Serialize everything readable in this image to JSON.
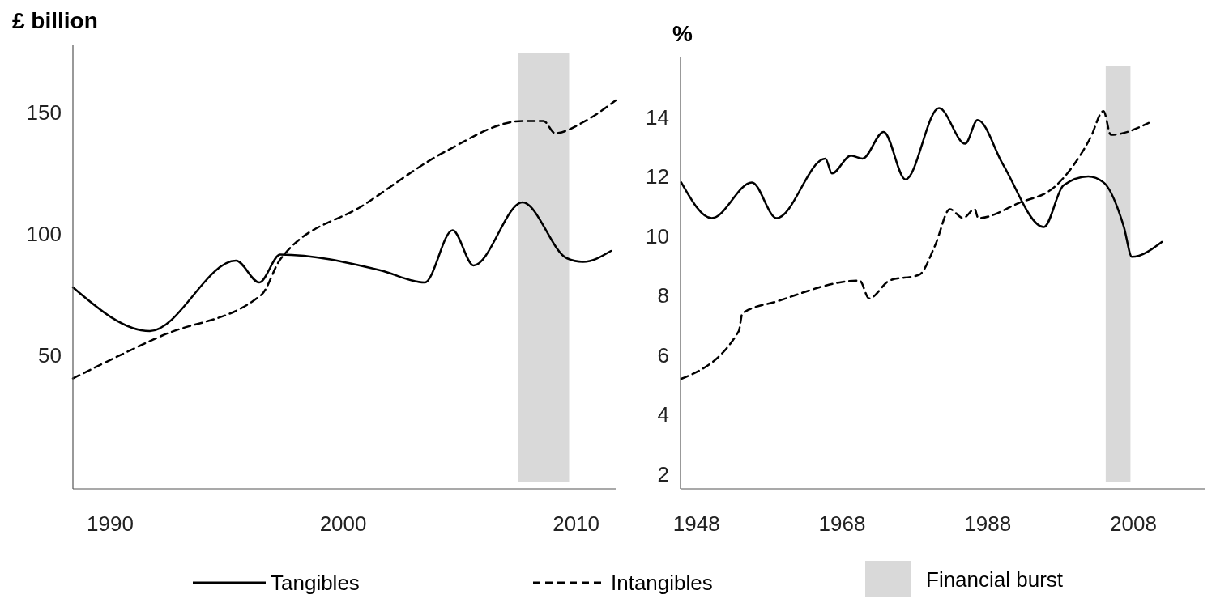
{
  "chart_data": [
    {
      "type": "line",
      "ylabel": "£ billion",
      "xlim": [
        1988.4,
        2011.7
      ],
      "xticks": [
        1990,
        2000,
        2010
      ],
      "ylim": [
        -5,
        178
      ],
      "yticks": [
        50,
        100,
        150
      ],
      "grid": false,
      "legend": "bottom",
      "bands": [
        {
          "axis": "x",
          "from": 2007.5,
          "to": 2009.7,
          "label": "Financial burst",
          "color": "#d9d9d9"
        }
      ],
      "series": [
        {
          "name": "Tangibles",
          "color": "#000000",
          "line_style": "solid",
          "x": [
            1988.4,
            1991.7,
            1995.4,
            1996.4,
            1997.3,
            2001.6,
            2003.5,
            2004.7,
            2005.6,
            2007.7,
            2009.6,
            2010.3,
            2011.5
          ],
          "values": [
            78,
            60,
            89,
            80,
            91.5,
            85,
            80,
            101.5,
            87,
            113,
            90,
            88.5,
            93
          ]
        },
        {
          "name": "Intangibles",
          "color": "#000000",
          "line_style": "dashed",
          "x": [
            1988.4,
            1992.2,
            1996.5,
            1997.3,
            2000.9,
            2004.4,
            2007.7,
            2008.6,
            2009.1,
            2010.3,
            2011.7
          ],
          "values": [
            40.5,
            58,
            75,
            89.5,
            112,
            134,
            146.5,
            146.5,
            141.5,
            146,
            155
          ]
        }
      ]
    },
    {
      "type": "line",
      "ylabel": "%",
      "xlim": [
        1945.8,
        2017.9
      ],
      "xticks": [
        1948,
        1968,
        1988,
        2008
      ],
      "ylim": [
        1.5,
        16
      ],
      "yticks": [
        2,
        4,
        6,
        8,
        10,
        12,
        14
      ],
      "grid": false,
      "bands": [
        {
          "axis": "x",
          "from": 2004.2,
          "to": 2007.6,
          "color": "#d9d9d9"
        }
      ],
      "series": [
        {
          "color": "#000000",
          "line_style": "solid",
          "x": [
            1945.9,
            1950.1,
            1955.6,
            1959.0,
            1965.7,
            1966.6,
            1969.2,
            1970.8,
            1973.7,
            1976.7,
            1981.3,
            1984.9,
            1986.6,
            1990.1,
            1995.7,
            1998.4,
            2001.8,
            2003.9,
            2006.7,
            2007.8,
            2011.9
          ],
          "values": [
            11.8,
            10.6,
            11.8,
            10.6,
            12.6,
            12.1,
            12.7,
            12.6,
            13.5,
            11.9,
            14.3,
            13.1,
            13.9,
            12.4,
            10.3,
            11.7,
            12.0,
            11.8,
            10.3,
            9.3,
            9.8
          ]
        },
        {
          "color": "#000000",
          "line_style": "dashed",
          "x": [
            1945.9,
            1953.8,
            1954.3,
            1959.0,
            1970.4,
            1971.7,
            1974.5,
            1978.6,
            1980.8,
            1982.8,
            1984.6,
            1986.2,
            1986.7,
            1992.2,
            1997.4,
            2002.1,
            2003.9,
            2004.9,
            2010.1
          ],
          "values": [
            5.2,
            6.8,
            7.4,
            7.8,
            8.5,
            7.9,
            8.5,
            8.7,
            9.7,
            10.9,
            10.6,
            10.9,
            10.6,
            11.1,
            11.7,
            13.3,
            14.2,
            13.4,
            13.8
          ]
        }
      ]
    }
  ]
}
